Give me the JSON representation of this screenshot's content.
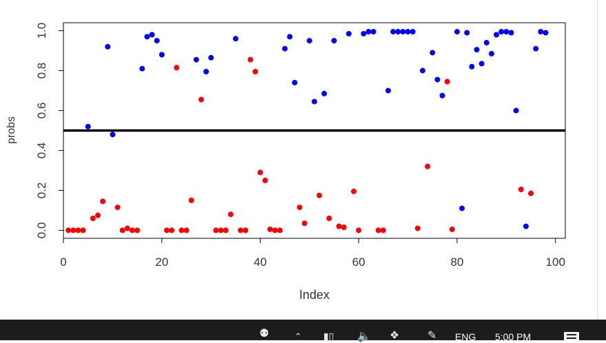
{
  "chart_data": {
    "type": "scatter",
    "title": "",
    "xlabel": "Index",
    "ylabel": "probs",
    "xlim": [
      0,
      102
    ],
    "ylim": [
      -0.04,
      1.04
    ],
    "x_ticks": [
      0,
      20,
      40,
      60,
      80,
      100
    ],
    "y_ticks": [
      0.0,
      0.2,
      0.4,
      0.6,
      0.8,
      1.0
    ],
    "x_tick_labels": [
      "0",
      "20",
      "40",
      "60",
      "80",
      "100"
    ],
    "y_tick_labels": [
      "0.0",
      "0.2",
      "0.4",
      "0.6",
      "0.8",
      "1.0"
    ],
    "hline": 0.5,
    "colors": {
      "blue": "#0000ff",
      "red": "#ff0000",
      "line": "#000000"
    },
    "series": [
      {
        "color": "blue",
        "points": [
          [
            5,
            0.52
          ],
          [
            9,
            0.92
          ],
          [
            10,
            0.48
          ],
          [
            16,
            0.81
          ],
          [
            17,
            0.97
          ],
          [
            18,
            0.98
          ],
          [
            19,
            0.95
          ],
          [
            20,
            0.88
          ],
          [
            27,
            0.855
          ],
          [
            29,
            0.795
          ],
          [
            30,
            0.865
          ],
          [
            35,
            0.96
          ],
          [
            45,
            0.91
          ],
          [
            46,
            0.97
          ],
          [
            47,
            0.74
          ],
          [
            50,
            0.95
          ],
          [
            51,
            0.645
          ],
          [
            53,
            0.685
          ],
          [
            55,
            0.95
          ],
          [
            58,
            0.985
          ],
          [
            61,
            0.985
          ],
          [
            62,
            0.995
          ],
          [
            63,
            0.995
          ],
          [
            66,
            0.7
          ],
          [
            67,
            0.995
          ],
          [
            68,
            0.995
          ],
          [
            69,
            0.995
          ],
          [
            70,
            0.995
          ],
          [
            71,
            0.995
          ],
          [
            73,
            0.8
          ],
          [
            75,
            0.89
          ],
          [
            76,
            0.755
          ],
          [
            77,
            0.675
          ],
          [
            80,
            0.995
          ],
          [
            81,
            0.11
          ],
          [
            82,
            0.99
          ],
          [
            83,
            0.82
          ],
          [
            84,
            0.905
          ],
          [
            85,
            0.835
          ],
          [
            86,
            0.94
          ],
          [
            87,
            0.885
          ],
          [
            88,
            0.98
          ],
          [
            89,
            0.995
          ],
          [
            90,
            0.995
          ],
          [
            91,
            0.99
          ],
          [
            92,
            0.6
          ],
          [
            94,
            0.02
          ],
          [
            96,
            0.91
          ],
          [
            97,
            0.995
          ],
          [
            98,
            0.99
          ]
        ]
      },
      {
        "color": "red",
        "points": [
          [
            1,
            0.0
          ],
          [
            2,
            0.0
          ],
          [
            3,
            0.0
          ],
          [
            4,
            0.0
          ],
          [
            6,
            0.06
          ],
          [
            7,
            0.075
          ],
          [
            8,
            0.145
          ],
          [
            11,
            0.115
          ],
          [
            12,
            0.0
          ],
          [
            13,
            0.01
          ],
          [
            14,
            0.0
          ],
          [
            15,
            0.0
          ],
          [
            21,
            0.0
          ],
          [
            22,
            0.0
          ],
          [
            23,
            0.815
          ],
          [
            24,
            0.0
          ],
          [
            25,
            0.0
          ],
          [
            26,
            0.15
          ],
          [
            28,
            0.655
          ],
          [
            31,
            0.0
          ],
          [
            32,
            0.0
          ],
          [
            33,
            0.0
          ],
          [
            34,
            0.08
          ],
          [
            36,
            0.0
          ],
          [
            37,
            0.0
          ],
          [
            38,
            0.855
          ],
          [
            39,
            0.795
          ],
          [
            40,
            0.29
          ],
          [
            41,
            0.25
          ],
          [
            42,
            0.005
          ],
          [
            43,
            0.0
          ],
          [
            44,
            0.0
          ],
          [
            48,
            0.115
          ],
          [
            49,
            0.035
          ],
          [
            52,
            0.175
          ],
          [
            54,
            0.06
          ],
          [
            56,
            0.02
          ],
          [
            57,
            0.015
          ],
          [
            59,
            0.195
          ],
          [
            60,
            0.0
          ],
          [
            64,
            0.0
          ],
          [
            65,
            0.0
          ],
          [
            72,
            0.01
          ],
          [
            74,
            0.32
          ],
          [
            78,
            0.745
          ],
          [
            79,
            0.005
          ],
          [
            93,
            0.205
          ],
          [
            95,
            0.185
          ]
        ]
      }
    ]
  },
  "taskbar": {
    "language": "ENG",
    "time": "5:00 PM",
    "icons": [
      "people-icon",
      "chevron-up-icon",
      "battery-icon",
      "volume-icon",
      "dropbox-icon",
      "pen-icon",
      "action-center-icon"
    ]
  }
}
